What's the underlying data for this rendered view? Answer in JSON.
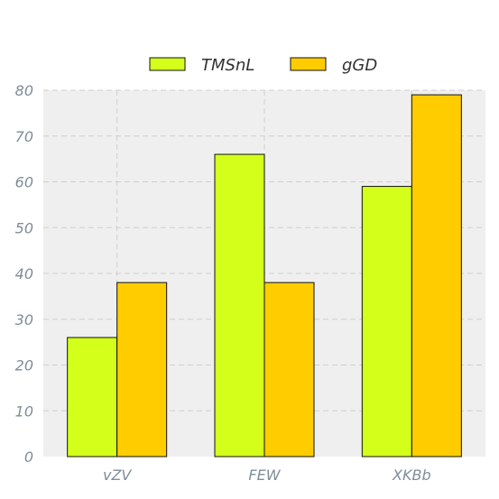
{
  "chart_data": {
    "type": "bar",
    "categories": [
      "vZV",
      "FEW",
      "XKBb"
    ],
    "series": [
      {
        "name": "TMSnL",
        "values": [
          26,
          66,
          59
        ],
        "color": "#d4ff1a"
      },
      {
        "name": "gGD",
        "values": [
          38,
          38,
          79
        ],
        "color": "#ffcc00"
      }
    ],
    "ylim": [
      0,
      80
    ],
    "yticks": [
      0,
      10,
      20,
      30,
      40,
      50,
      60,
      70,
      80
    ],
    "grid": true,
    "legend_position": "top-center",
    "plot_background": "#efefef",
    "bar_edge_color": "#111111"
  }
}
